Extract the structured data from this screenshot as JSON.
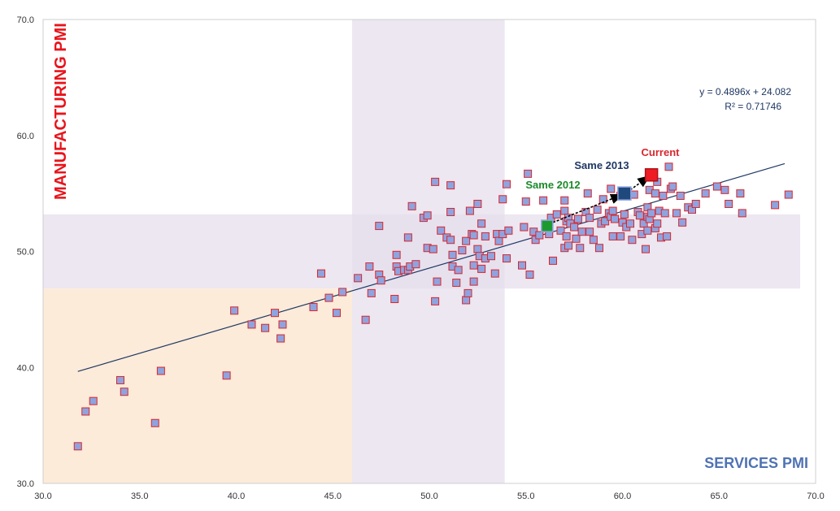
{
  "colors": {
    "point_fill": "#8fa3de",
    "point_stroke": "#d9262e",
    "trend": "#1f3864",
    "purple_band": "#e6dfec",
    "orange_zone": "#fcebd9",
    "current": "#ee1c25",
    "same2013": "#1f497d",
    "same2012": "#1c9a2e",
    "ylabel": "#e8141b",
    "xlabel": "#4f72b3"
  },
  "chart_data": {
    "type": "scatter",
    "title": "",
    "xlabel": "SERVICES PMI",
    "ylabel": "MANUFACTURING PMI",
    "xlim": [
      30,
      70
    ],
    "ylim": [
      30,
      70
    ],
    "xticks": [
      "30.0",
      "35.0",
      "40.0",
      "45.0",
      "50.0",
      "55.0",
      "60.0",
      "65.0",
      "70.0"
    ],
    "yticks": [
      "30.0",
      "40.0",
      "50.0",
      "60.0",
      "70.0"
    ],
    "grid": false,
    "regions": [
      {
        "name": "vertical-band",
        "x": [
          46,
          53.9
        ],
        "y": [
          30,
          70
        ]
      },
      {
        "name": "horizontal-band",
        "x": [
          30,
          69.2
        ],
        "y": [
          46.8,
          53.2
        ]
      },
      {
        "name": "contraction-zone",
        "x": [
          30,
          46
        ],
        "y": [
          30,
          46.8
        ]
      }
    ],
    "trendline": {
      "slope": 0.4896,
      "intercept": 24.082,
      "x_range": [
        31.8,
        68.4
      ],
      "equation": "y = 0.4896x + 24.082",
      "r2": "R² = 0.71746"
    },
    "series": [
      {
        "name": "history",
        "points": [
          [
            31.8,
            33.2
          ],
          [
            32.2,
            36.2
          ],
          [
            32.6,
            37.1
          ],
          [
            34.0,
            38.9
          ],
          [
            34.2,
            37.9
          ],
          [
            35.8,
            35.2
          ],
          [
            36.1,
            39.7
          ],
          [
            39.5,
            39.3
          ],
          [
            39.9,
            44.9
          ],
          [
            40.8,
            43.7
          ],
          [
            41.5,
            43.4
          ],
          [
            42.0,
            44.7
          ],
          [
            42.3,
            42.5
          ],
          [
            42.4,
            43.7
          ],
          [
            44.0,
            45.2
          ],
          [
            44.4,
            48.1
          ],
          [
            44.8,
            46.0
          ],
          [
            45.2,
            44.7
          ],
          [
            45.5,
            46.5
          ],
          [
            46.3,
            47.7
          ],
          [
            46.7,
            44.1
          ],
          [
            46.9,
            48.7
          ],
          [
            47.0,
            46.4
          ],
          [
            47.4,
            52.2
          ],
          [
            47.4,
            48.0
          ],
          [
            47.5,
            47.5
          ],
          [
            48.2,
            45.9
          ],
          [
            48.3,
            49.7
          ],
          [
            48.3,
            48.7
          ],
          [
            48.4,
            48.3
          ],
          [
            48.7,
            48.4
          ],
          [
            48.9,
            48.4
          ],
          [
            48.9,
            51.2
          ],
          [
            49.0,
            48.7
          ],
          [
            49.1,
            53.9
          ],
          [
            49.3,
            48.9
          ],
          [
            49.7,
            52.9
          ],
          [
            49.9,
            53.1
          ],
          [
            49.9,
            50.3
          ],
          [
            50.2,
            50.2
          ],
          [
            50.3,
            45.7
          ],
          [
            50.3,
            56.0
          ],
          [
            50.4,
            47.4
          ],
          [
            50.6,
            51.8
          ],
          [
            50.9,
            51.2
          ],
          [
            51.1,
            53.4
          ],
          [
            51.1,
            51.0
          ],
          [
            51.1,
            55.7
          ],
          [
            51.2,
            49.7
          ],
          [
            51.2,
            48.7
          ],
          [
            51.4,
            47.3
          ],
          [
            51.5,
            48.4
          ],
          [
            51.7,
            50.1
          ],
          [
            51.9,
            50.9
          ],
          [
            51.9,
            45.8
          ],
          [
            52.0,
            46.4
          ],
          [
            52.1,
            53.5
          ],
          [
            52.2,
            51.5
          ],
          [
            52.3,
            47.4
          ],
          [
            52.3,
            48.8
          ],
          [
            52.3,
            51.4
          ],
          [
            52.5,
            54.1
          ],
          [
            52.5,
            50.2
          ],
          [
            52.6,
            49.6
          ],
          [
            52.7,
            52.4
          ],
          [
            52.7,
            48.5
          ],
          [
            52.9,
            49.4
          ],
          [
            52.9,
            51.3
          ],
          [
            53.2,
            49.6
          ],
          [
            53.4,
            48.1
          ],
          [
            53.5,
            51.5
          ],
          [
            53.6,
            50.9
          ],
          [
            53.8,
            51.5
          ],
          [
            53.8,
            54.5
          ],
          [
            54.0,
            49.4
          ],
          [
            54.0,
            55.8
          ],
          [
            54.1,
            51.8
          ],
          [
            54.8,
            48.8
          ],
          [
            54.9,
            52.1
          ],
          [
            55.0,
            54.3
          ],
          [
            55.1,
            56.7
          ],
          [
            55.2,
            48.0
          ],
          [
            55.4,
            51.7
          ],
          [
            55.5,
            51.0
          ],
          [
            55.7,
            51.4
          ],
          [
            55.9,
            54.4
          ],
          [
            56.0,
            52.2
          ],
          [
            56.2,
            51.5
          ],
          [
            56.3,
            52.9
          ],
          [
            56.4,
            49.2
          ],
          [
            56.6,
            53.2
          ],
          [
            56.8,
            51.8
          ],
          [
            57.0,
            50.3
          ],
          [
            57.0,
            53.5
          ],
          [
            57.0,
            54.4
          ],
          [
            57.1,
            52.6
          ],
          [
            57.1,
            51.3
          ],
          [
            57.2,
            52.9
          ],
          [
            57.2,
            50.5
          ],
          [
            57.3,
            52.4
          ],
          [
            57.5,
            52.1
          ],
          [
            57.6,
            51.1
          ],
          [
            57.7,
            52.8
          ],
          [
            57.8,
            50.3
          ],
          [
            57.9,
            51.7
          ],
          [
            58.1,
            53.4
          ],
          [
            58.2,
            55.0
          ],
          [
            58.3,
            52.9
          ],
          [
            58.3,
            51.7
          ],
          [
            58.5,
            51.0
          ],
          [
            58.7,
            53.6
          ],
          [
            58.8,
            50.3
          ],
          [
            58.9,
            52.4
          ],
          [
            59.0,
            54.5
          ],
          [
            59.1,
            52.6
          ],
          [
            59.3,
            53.3
          ],
          [
            59.4,
            55.4
          ],
          [
            59.4,
            53.0
          ],
          [
            59.5,
            53.5
          ],
          [
            59.5,
            51.3
          ],
          [
            59.6,
            52.8
          ],
          [
            59.9,
            51.3
          ],
          [
            59.9,
            54.8
          ],
          [
            60.0,
            52.5
          ],
          [
            60.1,
            53.2
          ],
          [
            60.2,
            52.1
          ],
          [
            60.4,
            52.4
          ],
          [
            60.5,
            51.0
          ],
          [
            60.6,
            54.9
          ],
          [
            60.8,
            53.4
          ],
          [
            60.9,
            53.1
          ],
          [
            61.0,
            51.5
          ],
          [
            61.1,
            52.4
          ],
          [
            61.2,
            50.2
          ],
          [
            61.3,
            53.8
          ],
          [
            61.3,
            53.0
          ],
          [
            61.3,
            51.8
          ],
          [
            61.4,
            52.8
          ],
          [
            61.4,
            55.3
          ],
          [
            61.5,
            53.3
          ],
          [
            61.7,
            52.0
          ],
          [
            61.7,
            55.0
          ],
          [
            61.8,
            56.0
          ],
          [
            61.8,
            52.4
          ],
          [
            61.9,
            53.5
          ],
          [
            62.0,
            51.2
          ],
          [
            62.1,
            54.8
          ],
          [
            62.2,
            53.3
          ],
          [
            62.3,
            51.3
          ],
          [
            62.4,
            57.3
          ],
          [
            62.5,
            55.4
          ],
          [
            62.6,
            55.6
          ],
          [
            62.8,
            53.3
          ],
          [
            63.0,
            54.8
          ],
          [
            63.1,
            52.5
          ],
          [
            63.4,
            53.8
          ],
          [
            63.6,
            53.6
          ],
          [
            63.8,
            54.1
          ],
          [
            64.3,
            55.0
          ],
          [
            64.9,
            55.6
          ],
          [
            65.3,
            55.3
          ],
          [
            65.5,
            54.1
          ],
          [
            66.1,
            55.0
          ],
          [
            66.2,
            53.3
          ],
          [
            67.9,
            54.0
          ],
          [
            68.6,
            54.9
          ]
        ]
      },
      {
        "name": "Current",
        "points": [
          [
            61.5,
            56.6
          ]
        ]
      },
      {
        "name": "Same 2013",
        "points": [
          [
            60.1,
            55.0
          ]
        ]
      },
      {
        "name": "Same 2012",
        "points": [
          [
            56.1,
            52.2
          ]
        ]
      }
    ],
    "annotations": [
      {
        "text": "Current",
        "x": 61.5,
        "y": 56.6
      },
      {
        "text": "Same 2013",
        "x": 60.1,
        "y": 55.0
      },
      {
        "text": "Same 2012",
        "x": 56.1,
        "y": 52.2
      }
    ],
    "arrows": [
      {
        "from": [
          56.4,
          52.5
        ],
        "to": [
          60.0,
          54.9
        ]
      },
      {
        "from": [
          60.4,
          55.3
        ],
        "to": [
          61.4,
          56.5
        ]
      }
    ]
  }
}
